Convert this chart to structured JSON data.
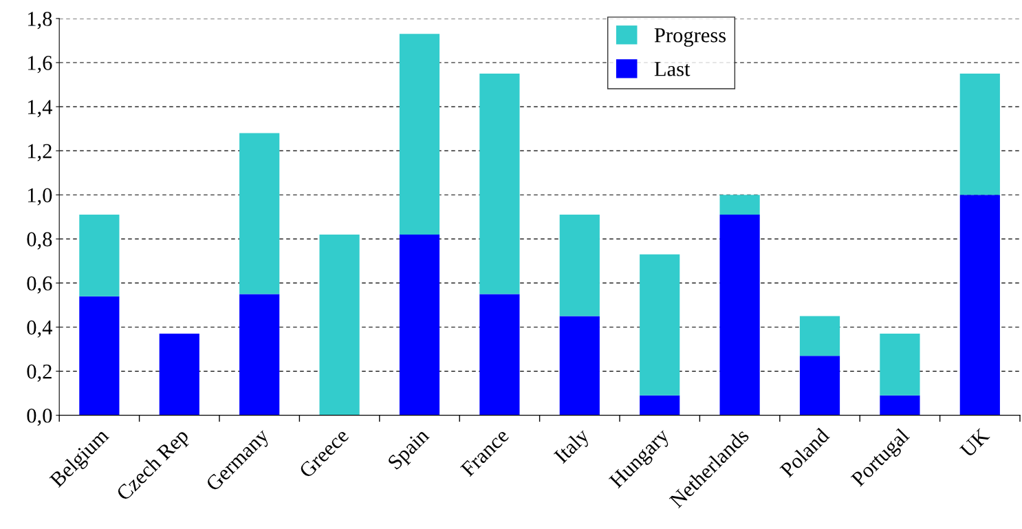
{
  "chart_data": {
    "type": "bar",
    "stacked": true,
    "categories": [
      "Belgium",
      "Czech Rep",
      "Germany",
      "Greece",
      "Spain",
      "France",
      "Italy",
      "Hungary",
      "Netherlands",
      "Poland",
      "Portugal",
      "UK"
    ],
    "series": [
      {
        "name": "Last",
        "color": "#0000ff",
        "values": [
          0.54,
          0.37,
          0.55,
          0,
          0.82,
          0.55,
          0.45,
          0.09,
          0.91,
          0.27,
          0.09,
          1.0
        ]
      },
      {
        "name": "Progress",
        "color": "#33cccc",
        "values": [
          0.37,
          0,
          0.73,
          0.82,
          0.91,
          1.0,
          0.46,
          0.64,
          0.09,
          0.18,
          0.28,
          0.55
        ]
      }
    ],
    "ylim": [
      0,
      1.8
    ],
    "yticks": [
      {
        "value": 0,
        "label": "0,0"
      },
      {
        "value": 0.2,
        "label": "0,2"
      },
      {
        "value": 0.4,
        "label": "0,4"
      },
      {
        "value": 0.6,
        "label": "0,6"
      },
      {
        "value": 0.8,
        "label": "0,8"
      },
      {
        "value": 1.0,
        "label": "1,0"
      },
      {
        "value": 1.2,
        "label": "1,2"
      },
      {
        "value": 1.4,
        "label": "1,4"
      },
      {
        "value": 1.6,
        "label": "1,6"
      },
      {
        "value": 1.8,
        "label": "1,8"
      }
    ],
    "grid": "y",
    "legend": "top"
  }
}
